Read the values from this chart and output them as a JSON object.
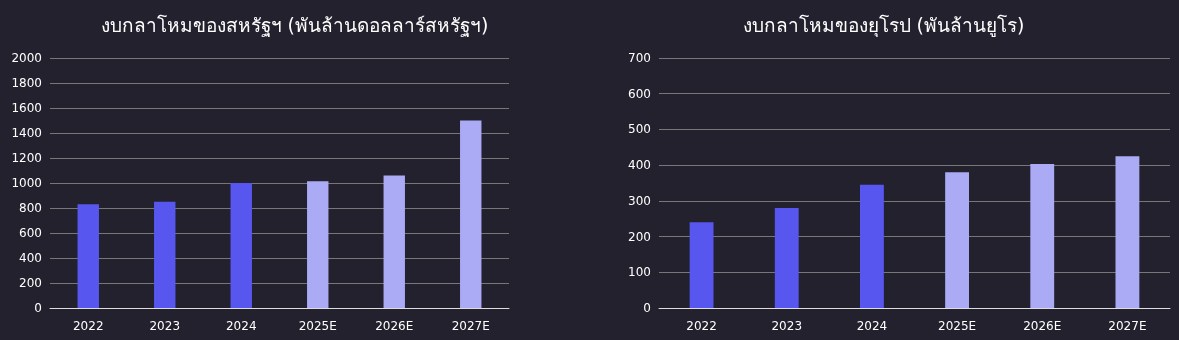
{
  "chart_data": [
    {
      "type": "bar",
      "title": "งบกลาโหมของสหรัฐฯ (พันล้านดอลลาร์สหรัฐฯ)",
      "categories": [
        "2022",
        "2023",
        "2024",
        "2025E",
        "2026E",
        "2027E"
      ],
      "values": [
        830,
        850,
        1000,
        1015,
        1060,
        1500
      ],
      "colors": [
        "#5757f0",
        "#5757f0",
        "#5757f0",
        "#aaaaf5",
        "#aaaaf5",
        "#aaaaf5"
      ],
      "ylim": [
        0,
        2000
      ],
      "yticks": [
        0,
        200,
        400,
        600,
        800,
        1000,
        1200,
        1400,
        1600,
        1800,
        2000
      ],
      "grid": "y"
    },
    {
      "type": "bar",
      "title": "งบกลาโหมของยุโรป (พันล้านยูโร)",
      "categories": [
        "2022",
        "2023",
        "2024",
        "2025E",
        "2026E",
        "2027E"
      ],
      "values": [
        240,
        280,
        345,
        380,
        403,
        425
      ],
      "colors": [
        "#5757f0",
        "#5757f0",
        "#5757f0",
        "#aaaaf5",
        "#aaaaf5",
        "#aaaaf5"
      ],
      "ylim": [
        0,
        700
      ],
      "yticks": [
        0,
        100,
        200,
        300,
        400,
        500,
        600,
        700
      ],
      "grid": "y"
    }
  ]
}
